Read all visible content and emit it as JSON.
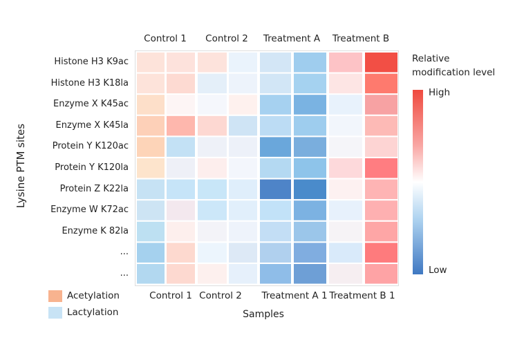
{
  "chart_data": {
    "type": "heatmap",
    "ylabel": "Lysine PTM sites",
    "xlabel": "Samples",
    "column_groups": [
      "Control 1",
      "Control 2",
      "Treatment A",
      "Treatment B"
    ],
    "bottom_labels": [
      "Control 1",
      "Control 2",
      "Treatment A 1",
      "Treatment B 1"
    ],
    "rows": [
      "Histone H3 K9ac",
      "Histone H3 K18la",
      "Enzyme X K45ac",
      "Enzyme X K45la",
      "Protein Y K120ac",
      "Protein Y K120la",
      "Protein Z K22la",
      "Enzyme W K72ac",
      "Enzyme K 82la",
      "...",
      "..."
    ],
    "cell_colors": [
      [
        "#fde3da",
        "#fde2dc",
        "#fde3dc",
        "#eaf3fc",
        "#d3e6f6",
        "#9fcdee",
        "#fdc3c6",
        "#f24f45"
      ],
      [
        "#fde3da",
        "#fddad2",
        "#e4eff9",
        "#edf3fb",
        "#d2e6f6",
        "#a5d2f0",
        "#fde5e4",
        "#fe7a6e"
      ],
      [
        "#fddfc9",
        "#fdf5f5",
        "#f5f7fc",
        "#fef1ee",
        "#a6d1f0",
        "#7ab3e2",
        "#e8f2fc",
        "#f7a2a3"
      ],
      [
        "#fdd0b8",
        "#feb7ad",
        "#fdd8d2",
        "#cfe4f5",
        "#bcdcf4",
        "#9ecdee",
        "#f2f6fc",
        "#fdbab6"
      ],
      [
        "#fdd4b8",
        "#c3e1f5",
        "#eef1f8",
        "#edf1f9",
        "#6aa7db",
        "#7aaedd",
        "#f5f5f9",
        "#fdd4d3"
      ],
      [
        "#fde4cc",
        "#eef0f7",
        "#fdeeed",
        "#f3f6fc",
        "#b4d9f2",
        "#8ec4ea",
        "#fdd9db",
        "#ff7d81"
      ],
      [
        "#c6e2f4",
        "#c6e4f8",
        "#c8e6f8",
        "#dfeefb",
        "#4e84c8",
        "#4a8bcb",
        "#fdf1f1",
        "#feb4b4"
      ],
      [
        "#cde4f4",
        "#f3e8ee",
        "#cce7f9",
        "#e1effb",
        "#c2e2f8",
        "#7cb2e2",
        "#e7f1fc",
        "#feb0b1"
      ],
      [
        "#bde0f2",
        "#fdefed",
        "#f3f3f8",
        "#eef3fb",
        "#c3def5",
        "#9bc6ea",
        "#f6f3f6",
        "#fea6a6"
      ],
      [
        "#a5d1ee",
        "#fdd9cf",
        "#ecf5fd",
        "#dde9f6",
        "#b0d0ee",
        "#80ade0",
        "#d9eafa",
        "#fe7b7d"
      ],
      [
        "#b2d8f0",
        "#fdd9d0",
        "#fdf0ee",
        "#e6f0fb",
        "#8fbde8",
        "#6e9fd6",
        "#f6eef1",
        "#fea3a5"
      ]
    ],
    "colorbar": {
      "title_line1": "Relative",
      "title_line2": "modification level",
      "high": "High",
      "low": "Low",
      "high_color": "#ef4a3f",
      "mid_color": "#ffffff",
      "low_color": "#3f78c2"
    },
    "legend": [
      {
        "label": "Acetylation",
        "color": "#f8b38f"
      },
      {
        "label": "Lactylation",
        "color": "#c8e3f5"
      }
    ]
  }
}
